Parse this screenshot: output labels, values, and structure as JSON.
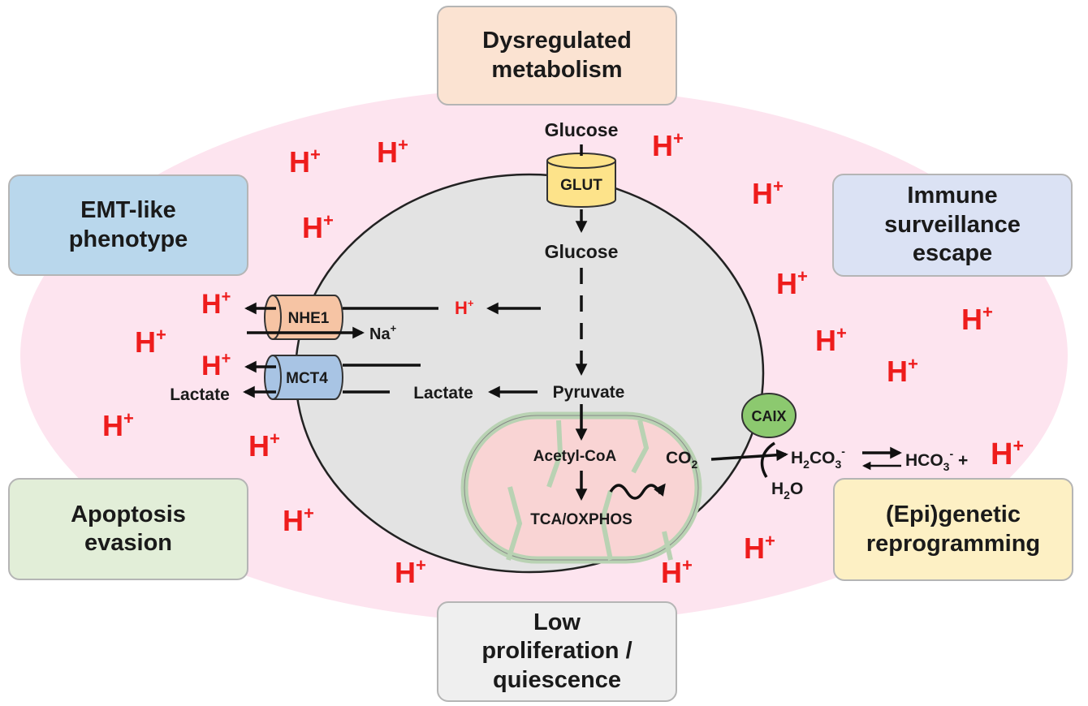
{
  "colors": {
    "background_ellipse": "#fde4ef",
    "cell": "#e3e3e3",
    "mitochondrion": "#f9d4d4",
    "mitochondrion_border": "#b9d2b3",
    "proton": "#ee1c1c",
    "glut": "#fde38a",
    "nhe1": "#f6c4a4",
    "mct4": "#a8c4e4",
    "caix": "#8cc96f"
  },
  "boxes": {
    "metabolism": {
      "lines": [
        "Dysregulated",
        "metabolism"
      ],
      "color": "#fbe3d2"
    },
    "emt": {
      "lines": [
        "EMT-like",
        "phenotype"
      ],
      "color": "#b9d7ec"
    },
    "immune": {
      "lines": [
        "Immune",
        "surveillance",
        "escape"
      ],
      "color": "#dbe2f4"
    },
    "apoptosis": {
      "lines": [
        "Apoptosis",
        "evasion"
      ],
      "color": "#e2eed8"
    },
    "epigenetic": {
      "lines": [
        "(Epi)genetic",
        "reprogramming"
      ],
      "color": "#fdf0c4"
    },
    "proliferation": {
      "lines": [
        "Low",
        "proliferation /",
        "quiescence"
      ],
      "color": "#efefef"
    }
  },
  "transporters": {
    "glut": "GLUT",
    "nhe1": "NHE1",
    "mct4": "MCT4",
    "caix": "CAIX"
  },
  "molecules": {
    "glucose_out": "Glucose",
    "glucose_in": "Glucose",
    "pyruvate": "Pyruvate",
    "lactate_in": "Lactate",
    "lactate_out": "Lactate",
    "acetyl_coa": "Acetyl-CoA",
    "tca": "TCA/OXPHOS",
    "co2": {
      "base": "CO",
      "sub": "2"
    },
    "h2co3": {
      "a": "H",
      "sub1": "2",
      "b": "CO",
      "sub2": "3",
      "sup": "-"
    },
    "hco3": {
      "a": "HCO",
      "sub": "3",
      "sup": "-",
      "plus": " +"
    },
    "h2o": {
      "a": "H",
      "sub": "2",
      "b": "O"
    },
    "na": {
      "base": "Na",
      "sup": "+"
    },
    "proton": {
      "base": "H",
      "sup": "+"
    }
  }
}
